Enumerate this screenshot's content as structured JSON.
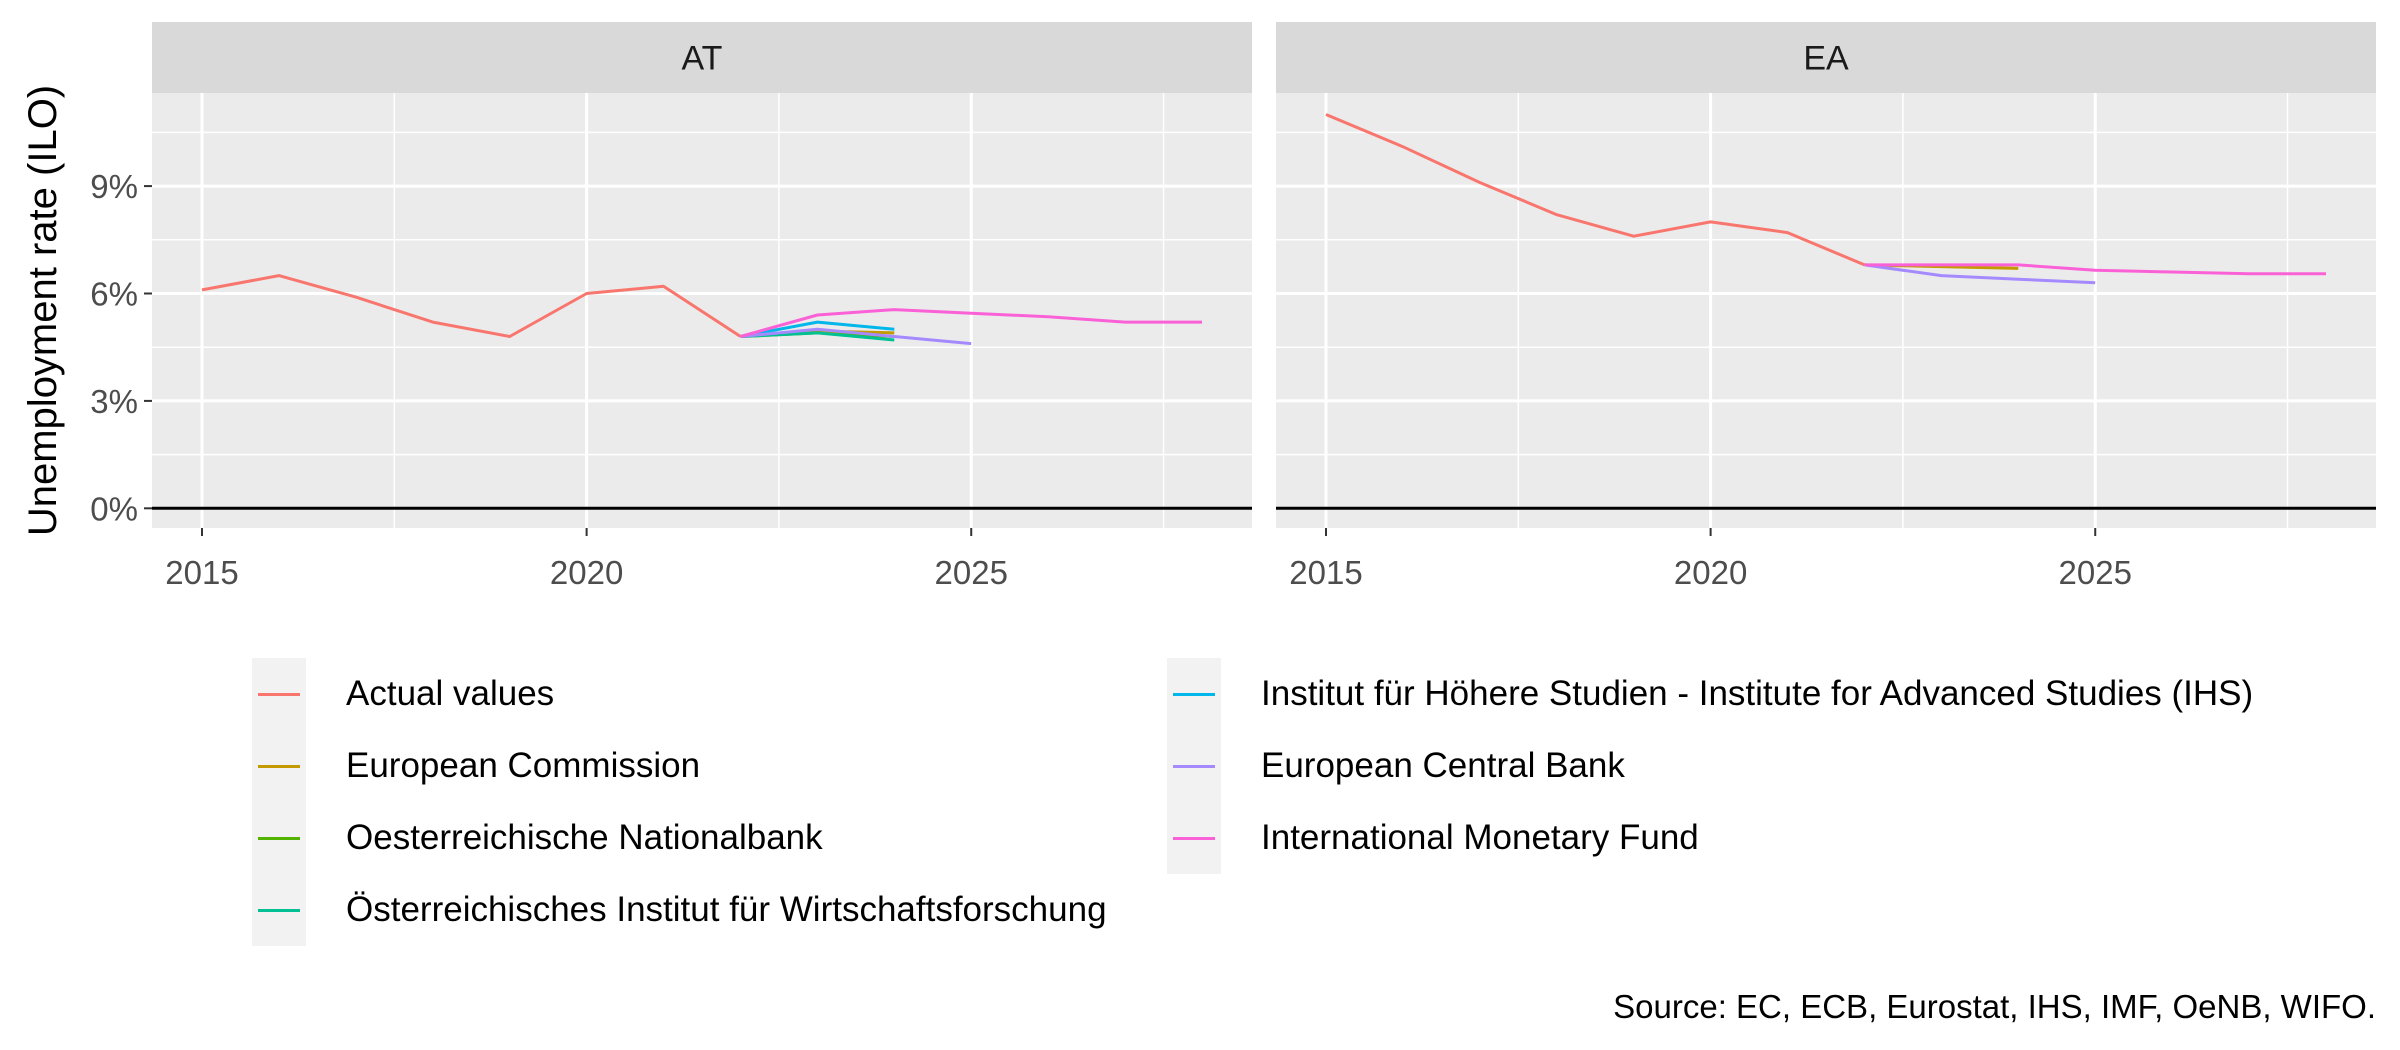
{
  "chart_data": {
    "type": "line",
    "ylabel": "Unemployment rate (ILO)",
    "xlabel": "",
    "x_ticks": [
      2015,
      2020,
      2025
    ],
    "x_tick_labels": [
      "2015",
      "2020",
      "2025"
    ],
    "y_ticks": [
      0,
      3,
      6,
      9
    ],
    "y_tick_labels": [
      "0%",
      "3%",
      "6%",
      "9%"
    ],
    "xlim": [
      2014.35,
      2028.65
    ],
    "ylim": [
      -0.55,
      11.6
    ],
    "grid": true,
    "hline_at": 0,
    "legend_position": "bottom",
    "caption": "Source: EC, ECB, Eurostat, IHS, IMF, OeNB, WIFO.",
    "legend": [
      {
        "label": "Actual values",
        "color": "#F8766D"
      },
      {
        "label": "European Commission",
        "color": "#C49A00"
      },
      {
        "label": "Oesterreichische Nationalbank",
        "color": "#53B400"
      },
      {
        "label": "Österreichisches Institut für Wirtschaftsforschung",
        "color": "#00C094"
      },
      {
        "label": "Institut für Höhere Studien - Institute for Advanced Studies (IHS)",
        "color": "#00B6EB"
      },
      {
        "label": "European Central Bank",
        "color": "#A58AFF"
      },
      {
        "label": "International Monetary Fund",
        "color": "#FB61D7"
      }
    ],
    "panels": [
      {
        "title": "AT",
        "series": [
          {
            "name": "Actual values",
            "color": "#F8766D",
            "x": [
              2015,
              2016,
              2017,
              2018,
              2019,
              2020,
              2021,
              2022
            ],
            "y": [
              6.1,
              6.5,
              5.9,
              5.2,
              4.8,
              6.0,
              6.2,
              4.8
            ]
          },
          {
            "name": "Oesterreichische Nationalbank",
            "color": "#53B400",
            "x": [
              2022,
              2023,
              2024
            ],
            "y": [
              4.8,
              4.9,
              4.8
            ]
          },
          {
            "name": "European Commission",
            "color": "#C49A00",
            "x": [
              2022,
              2023,
              2024
            ],
            "y": [
              4.8,
              4.95,
              4.9
            ]
          },
          {
            "name": "Österreichisches Institut für Wirtschaftsforschung",
            "color": "#00C094",
            "x": [
              2022,
              2023,
              2024
            ],
            "y": [
              4.8,
              4.9,
              4.7
            ]
          },
          {
            "name": "Institut für Höhere Studien - Institute for Advanced Studies (IHS)",
            "color": "#00B6EB",
            "x": [
              2022,
              2023,
              2024
            ],
            "y": [
              4.8,
              5.2,
              5.0
            ]
          },
          {
            "name": "European Central Bank",
            "color": "#A58AFF",
            "x": [
              2022,
              2023,
              2024,
              2025
            ],
            "y": [
              4.8,
              5.0,
              4.8,
              4.6
            ]
          },
          {
            "name": "International Monetary Fund",
            "color": "#FB61D7",
            "x": [
              2022,
              2023,
              2024,
              2025,
              2026,
              2027,
              2028
            ],
            "y": [
              4.8,
              5.4,
              5.55,
              5.45,
              5.35,
              5.2,
              5.2
            ]
          }
        ]
      },
      {
        "title": "EA",
        "series": [
          {
            "name": "Actual values",
            "color": "#F8766D",
            "x": [
              2015,
              2016,
              2017,
              2018,
              2019,
              2020,
              2021,
              2022
            ],
            "y": [
              11.0,
              10.1,
              9.1,
              8.2,
              7.6,
              8.0,
              7.7,
              6.8
            ]
          },
          {
            "name": "European Commission",
            "color": "#C49A00",
            "x": [
              2022,
              2023,
              2024
            ],
            "y": [
              6.8,
              6.75,
              6.7
            ]
          },
          {
            "name": "European Central Bank",
            "color": "#A58AFF",
            "x": [
              2022,
              2023,
              2024,
              2025
            ],
            "y": [
              6.8,
              6.5,
              6.4,
              6.3
            ]
          },
          {
            "name": "International Monetary Fund",
            "color": "#FB61D7",
            "x": [
              2022,
              2023,
              2024,
              2025,
              2026,
              2027,
              2028
            ],
            "y": [
              6.8,
              6.8,
              6.8,
              6.65,
              6.6,
              6.55,
              6.55
            ]
          }
        ]
      }
    ]
  }
}
